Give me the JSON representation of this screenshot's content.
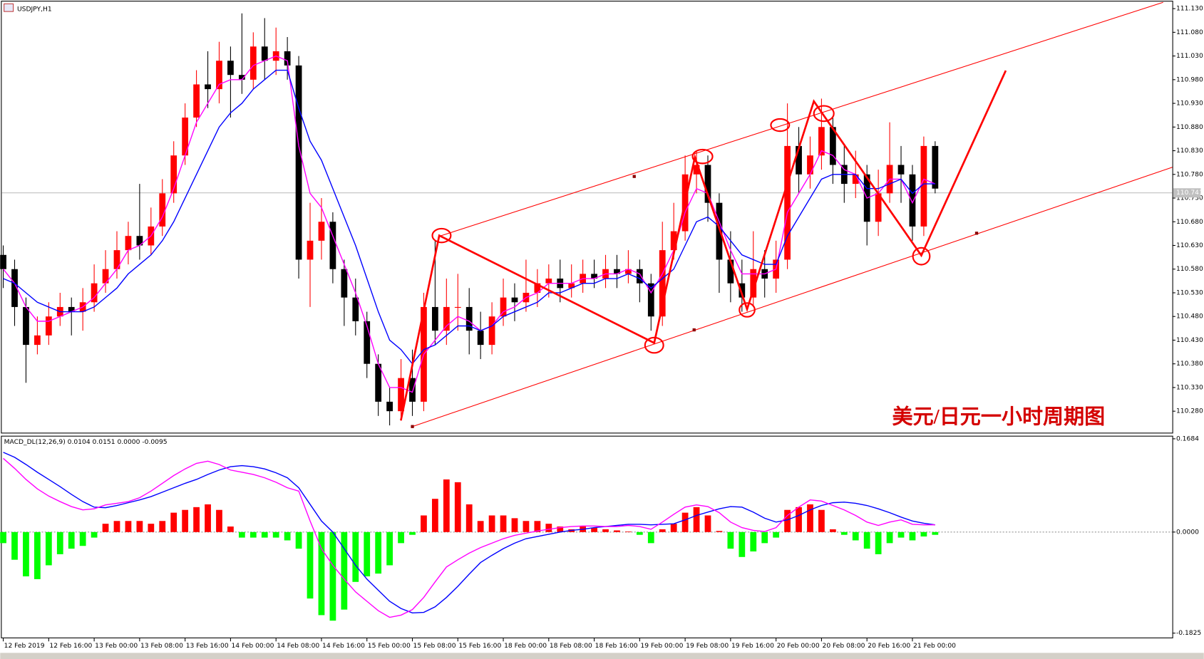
{
  "chart_data": [
    {
      "type": "candlestick",
      "title": "USDJPY,H1",
      "annotation": "美元/日元一小时周期图",
      "up_color": "#ff0000",
      "down_color": "#000000",
      "open": [
        110.61,
        110.58,
        110.5,
        110.42,
        110.44,
        110.48,
        110.5,
        110.49,
        110.51,
        110.55,
        110.58,
        110.62,
        110.65,
        110.63,
        110.67,
        110.74,
        110.82,
        110.9,
        110.97,
        110.96,
        111.02,
        110.99,
        110.98,
        111.05,
        111.02,
        111.04,
        111.01,
        110.6,
        110.64,
        110.68,
        110.58,
        110.52,
        110.47,
        110.38,
        110.3,
        110.28,
        110.35,
        110.3,
        110.5,
        110.45,
        110.5,
        110.5,
        110.45,
        110.42,
        110.48,
        110.52,
        110.51,
        110.53,
        110.55,
        110.56,
        110.54,
        110.55,
        110.57,
        110.56,
        110.58,
        110.57,
        110.58,
        110.55,
        110.48,
        110.62,
        110.66,
        110.78,
        110.8,
        110.72,
        110.6,
        110.55,
        110.52,
        110.58,
        110.56,
        110.6,
        110.84,
        110.78,
        110.82,
        110.88,
        110.8,
        110.76,
        110.78,
        110.68,
        110.74,
        110.8,
        110.78,
        110.67,
        110.84
      ],
      "high": [
        110.63,
        110.6,
        110.52,
        110.48,
        110.51,
        110.53,
        110.52,
        110.54,
        110.59,
        110.62,
        110.66,
        110.68,
        110.76,
        110.71,
        110.77,
        110.85,
        110.93,
        111.0,
        111.04,
        111.06,
        111.05,
        111.12,
        111.08,
        111.11,
        111.09,
        111.07,
        111.03,
        110.72,
        110.73,
        110.7,
        110.6,
        110.56,
        110.49,
        110.4,
        110.33,
        110.39,
        110.41,
        110.53,
        110.64,
        110.56,
        110.57,
        110.54,
        110.49,
        110.51,
        110.56,
        110.55,
        110.6,
        110.58,
        110.59,
        110.6,
        110.59,
        110.6,
        110.6,
        110.61,
        110.61,
        110.62,
        110.6,
        110.57,
        110.68,
        110.72,
        110.82,
        110.83,
        110.82,
        110.74,
        110.66,
        110.6,
        110.66,
        110.62,
        110.64,
        110.93,
        110.88,
        110.86,
        110.94,
        110.9,
        110.84,
        110.83,
        110.8,
        110.79,
        110.89,
        110.84,
        110.8,
        110.86,
        110.85
      ],
      "low": [
        110.54,
        110.46,
        110.34,
        110.4,
        110.42,
        110.46,
        110.44,
        110.45,
        110.49,
        110.53,
        110.56,
        110.59,
        110.6,
        110.61,
        110.65,
        110.72,
        110.8,
        110.88,
        110.92,
        110.93,
        110.9,
        110.95,
        110.96,
        110.98,
        110.99,
        110.98,
        110.56,
        110.5,
        110.6,
        110.55,
        110.46,
        110.44,
        110.35,
        110.27,
        110.25,
        110.26,
        110.27,
        110.28,
        110.42,
        110.42,
        110.45,
        110.4,
        110.39,
        110.4,
        110.46,
        110.47,
        110.49,
        110.5,
        110.52,
        110.51,
        110.52,
        110.53,
        110.54,
        110.54,
        110.54,
        110.55,
        110.51,
        110.45,
        110.46,
        110.6,
        110.64,
        110.74,
        110.68,
        110.53,
        110.51,
        110.49,
        110.5,
        110.52,
        110.53,
        110.58,
        110.74,
        110.75,
        110.79,
        110.76,
        110.72,
        110.73,
        110.63,
        110.65,
        110.72,
        110.72,
        110.64,
        110.65,
        110.74
      ],
      "close": [
        110.58,
        110.5,
        110.42,
        110.44,
        110.48,
        110.5,
        110.49,
        110.51,
        110.55,
        110.58,
        110.62,
        110.65,
        110.63,
        110.67,
        110.74,
        110.82,
        110.9,
        110.97,
        110.96,
        111.02,
        110.99,
        110.98,
        111.05,
        111.02,
        111.04,
        111.01,
        110.6,
        110.64,
        110.68,
        110.58,
        110.52,
        110.47,
        110.38,
        110.3,
        110.28,
        110.35,
        110.3,
        110.5,
        110.45,
        110.5,
        110.5,
        110.45,
        110.42,
        110.48,
        110.52,
        110.51,
        110.53,
        110.55,
        110.56,
        110.54,
        110.55,
        110.57,
        110.56,
        110.58,
        110.57,
        110.58,
        110.55,
        110.48,
        110.62,
        110.66,
        110.78,
        110.8,
        110.72,
        110.6,
        110.55,
        110.52,
        110.58,
        110.56,
        110.6,
        110.84,
        110.78,
        110.82,
        110.88,
        110.8,
        110.76,
        110.78,
        110.68,
        110.74,
        110.8,
        110.78,
        110.67,
        110.84,
        110.75
      ],
      "series": [
        {
          "color": "#ff00ff",
          "values": [
            110.58,
            110.55,
            110.5,
            110.47,
            110.47,
            110.48,
            110.49,
            110.5,
            110.52,
            110.55,
            110.58,
            110.62,
            110.63,
            110.65,
            110.69,
            110.75,
            110.82,
            110.89,
            110.93,
            110.97,
            110.98,
            110.98,
            111.01,
            111.02,
            111.03,
            111.02,
            110.84,
            110.74,
            110.71,
            110.65,
            110.59,
            110.53,
            110.46,
            110.38,
            110.33,
            110.33,
            110.32,
            110.4,
            110.43,
            110.46,
            110.48,
            110.47,
            110.45,
            110.46,
            110.49,
            110.5,
            110.52,
            110.53,
            110.55,
            110.55,
            110.55,
            110.56,
            110.56,
            110.57,
            110.57,
            110.58,
            110.57,
            110.53,
            110.57,
            110.62,
            110.7,
            110.75,
            110.74,
            110.68,
            110.62,
            110.57,
            110.57,
            110.57,
            110.58,
            110.7,
            110.74,
            110.78,
            110.83,
            110.82,
            110.79,
            110.78,
            110.73,
            110.74,
            110.77,
            110.77,
            110.72,
            110.77,
            110.76
          ]
        },
        {
          "color": "#0000ff",
          "values": [
            110.56,
            110.55,
            110.53,
            110.51,
            110.5,
            110.49,
            110.49,
            110.49,
            110.5,
            110.52,
            110.54,
            110.57,
            110.59,
            110.61,
            110.64,
            110.68,
            110.73,
            110.78,
            110.83,
            110.88,
            110.91,
            110.93,
            110.96,
            110.98,
            111.0,
            111.0,
            110.92,
            110.85,
            110.81,
            110.75,
            110.69,
            110.63,
            110.56,
            110.49,
            110.43,
            110.41,
            110.38,
            110.41,
            110.42,
            110.44,
            110.46,
            110.46,
            110.45,
            110.46,
            110.48,
            110.49,
            110.5,
            110.51,
            110.53,
            110.53,
            110.54,
            110.55,
            110.55,
            110.56,
            110.56,
            110.57,
            110.56,
            110.54,
            110.56,
            110.58,
            110.63,
            110.68,
            110.69,
            110.67,
            110.64,
            110.61,
            110.6,
            110.59,
            110.59,
            110.65,
            110.69,
            110.73,
            110.77,
            110.78,
            110.78,
            110.78,
            110.75,
            110.75,
            110.76,
            110.77,
            110.74,
            110.76,
            110.76
          ]
        }
      ],
      "current_price": 110.741,
      "ylim": [
        110.233,
        111.145
      ],
      "yticks": [
        {
          "value": 111.13,
          "label": "111.130"
        },
        {
          "value": 111.08,
          "label": "111.080"
        },
        {
          "value": 111.03,
          "label": "111.030"
        },
        {
          "value": 110.98,
          "label": "110.980"
        },
        {
          "value": 110.93,
          "label": "110.930"
        },
        {
          "value": 110.88,
          "label": "110.880"
        },
        {
          "value": 110.83,
          "label": "110.830"
        },
        {
          "value": 110.78,
          "label": "110.780"
        },
        {
          "value": 110.73,
          "label": "110.730"
        },
        {
          "value": 110.68,
          "label": "110.680"
        },
        {
          "value": 110.63,
          "label": "110.630"
        },
        {
          "value": 110.58,
          "label": "110.580"
        },
        {
          "value": 110.53,
          "label": "110.530"
        },
        {
          "value": 110.48,
          "label": "110.480"
        },
        {
          "value": 110.43,
          "label": "110.430"
        },
        {
          "value": 110.38,
          "label": "110.380"
        },
        {
          "value": 110.33,
          "label": "110.330"
        },
        {
          "value": 110.28,
          "label": "110.280"
        }
      ],
      "xticks": [
        {
          "value": 0,
          "label": "12 Feb 2019"
        },
        {
          "value": 4,
          "label": "12 Feb 16:00"
        },
        {
          "value": 8,
          "label": "13 Feb 00:00"
        },
        {
          "value": 12,
          "label": "13 Feb 08:00"
        },
        {
          "value": 16,
          "label": "13 Feb 16:00"
        },
        {
          "value": 20,
          "label": "14 Feb 00:00"
        },
        {
          "value": 24,
          "label": "14 Feb 08:00"
        },
        {
          "value": 28,
          "label": "14 Feb 16:00"
        },
        {
          "value": 32,
          "label": "15 Feb 00:00"
        },
        {
          "value": 36,
          "label": "15 Feb 08:00"
        },
        {
          "value": 40,
          "label": "15 Feb 16:00"
        },
        {
          "value": 44,
          "label": "18 Feb 00:00"
        },
        {
          "value": 48,
          "label": "18 Feb 08:00"
        },
        {
          "value": 52,
          "label": "18 Feb 16:00"
        },
        {
          "value": 56,
          "label": "19 Feb 00:00"
        },
        {
          "value": 60,
          "label": "19 Feb 08:00"
        },
        {
          "value": 64,
          "label": "19 Feb 16:00"
        },
        {
          "value": 68,
          "label": "20 Feb 00:00"
        },
        {
          "value": 72,
          "label": "20 Feb 08:00"
        },
        {
          "value": 76,
          "label": "20 Feb 16:00"
        },
        {
          "value": 80,
          "label": "21 Feb 00:00"
        }
      ]
    },
    {
      "type": "macd",
      "title": "MACD_DL(12,26,9) 0.0104 0.0151 0.0000 -0.0095",
      "up_color": "#ff0000",
      "down_color": "#00ff00",
      "values": [
        -0.02,
        -0.05,
        -0.08,
        -0.085,
        -0.06,
        -0.04,
        -0.03,
        -0.025,
        -0.01,
        0.015,
        0.02,
        0.02,
        0.02,
        0.015,
        0.02,
        0.035,
        0.04,
        0.045,
        0.05,
        0.04,
        0.01,
        -0.01,
        -0.01,
        -0.01,
        -0.01,
        -0.015,
        -0.03,
        -0.12,
        -0.15,
        -0.16,
        -0.14,
        -0.09,
        -0.08,
        -0.075,
        -0.06,
        -0.02,
        -0.005,
        0.03,
        0.06,
        0.095,
        0.09,
        0.05,
        0.02,
        0.03,
        0.03,
        0.025,
        0.02,
        0.02,
        0.015,
        0.01,
        0.005,
        0.01,
        0.008,
        0.005,
        0.003,
        0.001,
        -0.005,
        -0.02,
        0.005,
        0.015,
        0.035,
        0.045,
        0.03,
        0.002,
        -0.03,
        -0.045,
        -0.035,
        -0.02,
        -0.01,
        0.04,
        0.045,
        0.05,
        0.04,
        0.005,
        -0.005,
        -0.015,
        -0.03,
        -0.04,
        -0.02,
        -0.01,
        -0.015,
        -0.008,
        -0.005
      ],
      "series": [
        {
          "color": "#0000ff",
          "values": [
            0.144,
            0.135,
            0.122,
            0.108,
            0.095,
            0.082,
            0.068,
            0.055,
            0.045,
            0.044,
            0.048,
            0.053,
            0.058,
            0.064,
            0.072,
            0.08,
            0.088,
            0.095,
            0.104,
            0.112,
            0.118,
            0.12,
            0.118,
            0.114,
            0.107,
            0.098,
            0.08,
            0.05,
            0.02,
            0.0,
            -0.03,
            -0.06,
            -0.085,
            -0.105,
            -0.125,
            -0.138,
            -0.146,
            -0.145,
            -0.135,
            -0.118,
            -0.098,
            -0.076,
            -0.055,
            -0.042,
            -0.03,
            -0.02,
            -0.012,
            -0.008,
            -0.004,
            0.0,
            0.003,
            0.005,
            0.008,
            0.01,
            0.012,
            0.014,
            0.014,
            0.013,
            0.014,
            0.015,
            0.022,
            0.03,
            0.036,
            0.042,
            0.046,
            0.045,
            0.036,
            0.025,
            0.018,
            0.022,
            0.03,
            0.04,
            0.048,
            0.053,
            0.054,
            0.052,
            0.048,
            0.042,
            0.035,
            0.027,
            0.02,
            0.016,
            0.013
          ]
        },
        {
          "color": "#ff00ff",
          "values": [
            0.133,
            0.115,
            0.095,
            0.078,
            0.065,
            0.055,
            0.046,
            0.04,
            0.042,
            0.049,
            0.052,
            0.055,
            0.062,
            0.074,
            0.088,
            0.102,
            0.114,
            0.124,
            0.128,
            0.122,
            0.112,
            0.108,
            0.104,
            0.098,
            0.09,
            0.08,
            0.074,
            0.02,
            -0.03,
            -0.06,
            -0.085,
            -0.108,
            -0.125,
            -0.142,
            -0.154,
            -0.15,
            -0.14,
            -0.118,
            -0.09,
            -0.063,
            -0.05,
            -0.038,
            -0.028,
            -0.02,
            -0.012,
            -0.006,
            -0.002,
            0.002,
            0.005,
            0.008,
            0.01,
            0.011,
            0.011,
            0.01,
            0.01,
            0.012,
            0.01,
            0.005,
            0.018,
            0.032,
            0.045,
            0.049,
            0.046,
            0.035,
            0.018,
            0.008,
            0.003,
            0.001,
            0.008,
            0.03,
            0.045,
            0.058,
            0.056,
            0.048,
            0.04,
            0.03,
            0.018,
            0.012,
            0.018,
            0.022,
            0.014,
            0.013,
            0.013
          ]
        }
      ],
      "ylim": [
        -0.1918,
        0.1725
      ],
      "yticks": [
        0.1684,
        {
          "value": 0,
          "label": "0.0000"
        },
        -0.1825
      ]
    }
  ]
}
